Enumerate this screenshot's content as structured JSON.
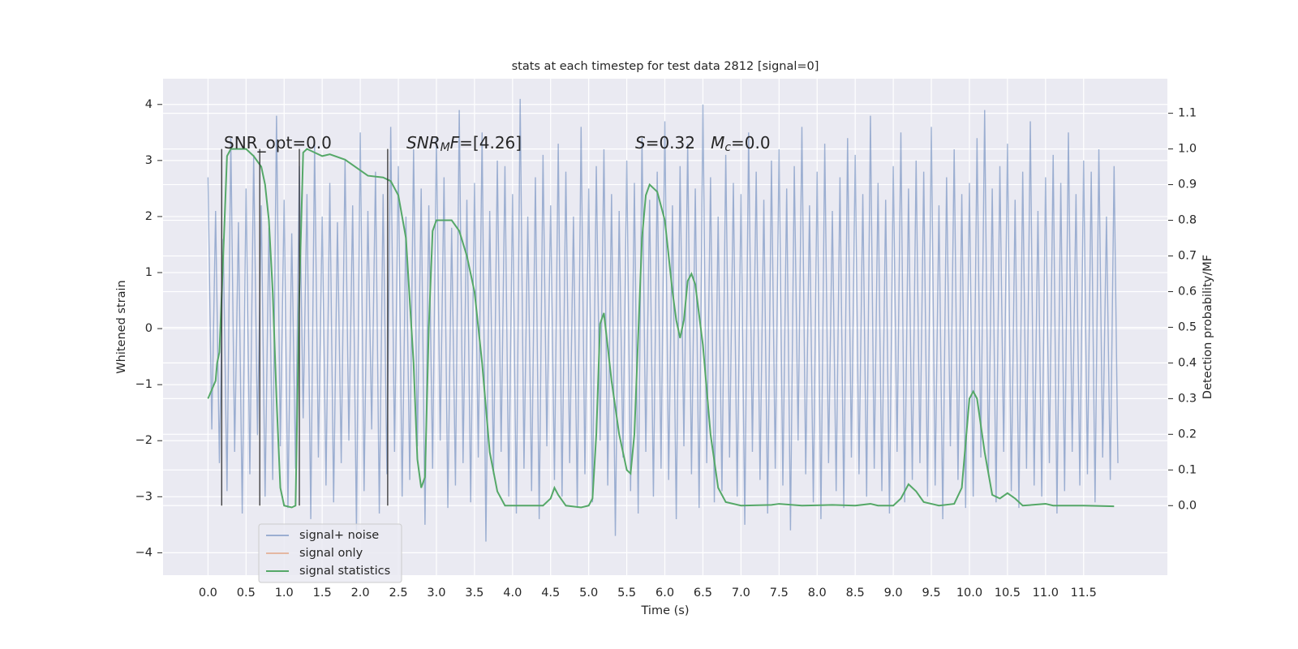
{
  "chart_data": {
    "type": "line",
    "title": "stats at each timestep for test data 2812 [signal=0]",
    "xlabel": "Time (s)",
    "ylabel": "Whitened strain",
    "y2label": "Detection probability/MF",
    "xlim": [
      -0.59,
      12.6
    ],
    "ylim": [
      -4.4,
      4.46
    ],
    "y2lim": [
      -0.195,
      1.197
    ],
    "xticks": [
      {
        "value": 0,
        "label": "0.0"
      },
      0.5,
      {
        "value": 1,
        "label": "1.0"
      },
      1.5,
      {
        "value": 2,
        "label": "2.0"
      },
      2.5,
      {
        "value": 3,
        "label": "3.0"
      },
      3.5,
      {
        "value": 4,
        "label": "4.0"
      },
      4.5,
      {
        "value": 5,
        "label": "5.0"
      },
      5.5,
      {
        "value": 6,
        "label": "6.0"
      },
      6.5,
      {
        "value": 7,
        "label": "7.0"
      },
      7.5,
      {
        "value": 8,
        "label": "8.0"
      },
      8.5,
      {
        "value": 9,
        "label": "9.0"
      },
      9.5,
      {
        "value": 10,
        "label": "10.0"
      },
      10.5,
      {
        "value": 11,
        "label": "11.0"
      },
      11.5
    ],
    "yticks": [
      {
        "value": -4,
        "label": "−4"
      },
      {
        "value": -3,
        "label": "−3"
      },
      {
        "value": -2,
        "label": "−2"
      },
      {
        "value": -1,
        "label": "−1"
      },
      0,
      1,
      2,
      3,
      4
    ],
    "y2ticks": [
      {
        "value": 0,
        "label": "0.0"
      },
      0.1,
      0.2,
      0.3,
      0.4,
      0.5,
      0.6,
      0.7,
      0.8,
      0.9,
      {
        "value": 1,
        "label": "1.0"
      },
      1.1
    ],
    "grid": true,
    "legend": "lower left",
    "series": [
      {
        "name": "signal+ noise",
        "color": "#4c72b0",
        "alpha": 0.5,
        "x": [
          0,
          0.05,
          0.1,
          0.15,
          0.2,
          0.25,
          0.3,
          0.35,
          0.4,
          0.45,
          0.5,
          0.55,
          0.6,
          0.65,
          0.7,
          0.75,
          0.8,
          0.85,
          0.9,
          0.95,
          1,
          1.05,
          1.1,
          1.15,
          1.2,
          1.25,
          1.3,
          1.35,
          1.4,
          1.45,
          1.5,
          1.55,
          1.6,
          1.65,
          1.7,
          1.75,
          1.8,
          1.85,
          1.9,
          1.95,
          2,
          2.05,
          2.1,
          2.15,
          2.2,
          2.25,
          2.3,
          2.35,
          2.4,
          2.45,
          2.5,
          2.55,
          2.6,
          2.65,
          2.7,
          2.75,
          2.8,
          2.85,
          2.9,
          2.95,
          3,
          3.05,
          3.1,
          3.15,
          3.2,
          3.25,
          3.3,
          3.35,
          3.4,
          3.45,
          3.5,
          3.55,
          3.6,
          3.65,
          3.7,
          3.75,
          3.8,
          3.85,
          3.9,
          3.95,
          4,
          4.05,
          4.1,
          4.15,
          4.2,
          4.25,
          4.3,
          4.35,
          4.4,
          4.45,
          4.5,
          4.55,
          4.6,
          4.65,
          4.7,
          4.75,
          4.8,
          4.85,
          4.9,
          4.95,
          5,
          5.05,
          5.1,
          5.15,
          5.2,
          5.25,
          5.3,
          5.35,
          5.4,
          5.45,
          5.5,
          5.55,
          5.6,
          5.65,
          5.7,
          5.75,
          5.8,
          5.85,
          5.9,
          5.95,
          6,
          6.05,
          6.1,
          6.15,
          6.2,
          6.25,
          6.3,
          6.35,
          6.4,
          6.45,
          6.5,
          6.55,
          6.6,
          6.65,
          6.7,
          6.75,
          6.8,
          6.85,
          6.9,
          6.95,
          7,
          7.05,
          7.1,
          7.15,
          7.2,
          7.25,
          7.3,
          7.35,
          7.4,
          7.45,
          7.5,
          7.55,
          7.6,
          7.65,
          7.7,
          7.75,
          7.8,
          7.85,
          7.9,
          7.95,
          8,
          8.05,
          8.1,
          8.15,
          8.2,
          8.25,
          8.3,
          8.35,
          8.4,
          8.45,
          8.5,
          8.55,
          8.6,
          8.65,
          8.7,
          8.75,
          8.8,
          8.85,
          8.9,
          8.95,
          9,
          9.05,
          9.1,
          9.15,
          9.2,
          9.25,
          9.3,
          9.35,
          9.4,
          9.45,
          9.5,
          9.55,
          9.6,
          9.65,
          9.7,
          9.75,
          9.8,
          9.85,
          9.9,
          9.95,
          10,
          10.05,
          10.1,
          10.15,
          10.2,
          10.25,
          10.3,
          10.35,
          10.4,
          10.45,
          10.5,
          10.55,
          10.6,
          10.65,
          10.7,
          10.75,
          10.8,
          10.85,
          10.9,
          10.95,
          11,
          11.05,
          11.1,
          11.15,
          11.2,
          11.25,
          11.3,
          11.35,
          11.4,
          11.45,
          11.5,
          11.55,
          11.6,
          11.65,
          11.7,
          11.75,
          11.8,
          11.85,
          11.9,
          11.95
        ],
        "values": [
          2.7,
          -1.8,
          2.1,
          -2.4,
          1.6,
          -2.9,
          3.4,
          -2.2,
          1.9,
          -3.3,
          2.5,
          -2.6,
          3.1,
          -1.9,
          2.2,
          -3.0,
          1.8,
          -2.7,
          3.8,
          -2.1,
          2.3,
          -3.2,
          1.7,
          -2.5,
          2.9,
          -1.6,
          2.4,
          -3.4,
          3.3,
          -2.3,
          2.0,
          -2.8,
          2.6,
          -3.1,
          1.9,
          -2.4,
          3.0,
          -2.0,
          2.2,
          -3.6,
          3.5,
          -2.9,
          2.1,
          -1.8,
          2.8,
          -3.3,
          2.4,
          -2.6,
          3.6,
          -2.2,
          2.9,
          -3.0,
          2.0,
          -2.7,
          3.2,
          -2.1,
          2.5,
          -3.5,
          2.2,
          -2.5,
          3.4,
          -2.0,
          2.7,
          -3.2,
          1.8,
          -2.8,
          3.9,
          -2.4,
          2.3,
          -3.1,
          2.6,
          -2.3,
          3.5,
          -3.8,
          2.1,
          -2.6,
          3.0,
          -2.2,
          2.9,
          -3.0,
          2.4,
          -3.3,
          4.1,
          -2.5,
          2.0,
          -2.9,
          2.7,
          -3.4,
          3.1,
          -2.1,
          2.2,
          -2.7,
          3.3,
          -3.0,
          2.8,
          -2.4,
          2.0,
          -3.2,
          3.6,
          -2.6,
          2.5,
          -3.1,
          2.9,
          -2.0,
          3.2,
          -2.8,
          2.4,
          -3.7,
          2.1,
          -2.3,
          3.0,
          -2.9,
          2.6,
          -3.3,
          3.4,
          -2.2,
          2.3,
          -3.0,
          2.8,
          -2.5,
          3.7,
          -2.7,
          2.2,
          -3.4,
          2.9,
          -2.1,
          3.3,
          -2.6,
          2.5,
          -3.2,
          4.0,
          -2.4,
          2.7,
          -3.1,
          2.0,
          -2.9,
          3.1,
          -2.3,
          2.6,
          -3.0,
          2.4,
          -3.5,
          3.5,
          -2.2,
          2.8,
          -2.7,
          2.3,
          -3.3,
          3.0,
          -2.5,
          3.2,
          -2.8,
          2.5,
          -3.6,
          2.9,
          -2.0,
          3.6,
          -2.6,
          2.2,
          -3.1,
          2.8,
          -3.4,
          3.3,
          -2.4,
          2.1,
          -2.9,
          2.7,
          -3.2,
          3.4,
          -2.3,
          3.1,
          -2.6,
          2.4,
          -3.0,
          3.8,
          -2.5,
          2.6,
          -2.9,
          2.3,
          -3.3,
          2.9,
          -2.2,
          3.5,
          -3.1,
          2.5,
          -2.7,
          3.0,
          -2.4,
          2.8,
          -3.0,
          3.6,
          -2.8,
          2.2,
          -3.4,
          2.7,
          -2.1,
          3.2,
          -2.7,
          2.4,
          -3.2,
          2.6,
          -3.0,
          3.4,
          -2.3,
          3.9,
          -2.6,
          2.5,
          -3.1,
          2.9,
          -2.2,
          3.3,
          -2.9,
          2.3,
          -3.2,
          2.8,
          -2.5,
          3.7,
          -2.8,
          2.1,
          -3.0,
          2.7,
          -2.4,
          3.1,
          -3.3,
          2.6,
          -2.9,
          3.5,
          -2.2,
          2.4,
          -2.8,
          3.0,
          -2.6,
          2.8,
          -3.1,
          3.2,
          -2.3,
          2.0,
          -2.7,
          2.9,
          -2.4
        ]
      },
      {
        "name": "signal only",
        "color": "#dd8452",
        "alpha": 0.5,
        "x": [],
        "values": []
      },
      {
        "name": "signal statistics",
        "color": "#55a868",
        "alpha": 1,
        "axis": "y2",
        "x": [
          0,
          0.1,
          0.12,
          0.15,
          0.2,
          0.25,
          0.3,
          0.5,
          0.6,
          0.7,
          0.75,
          0.8,
          0.85,
          0.9,
          0.95,
          1,
          1.1,
          1.15,
          1.2,
          1.25,
          1.3,
          1.4,
          1.5,
          1.6,
          1.8,
          2,
          2.1,
          2.3,
          2.4,
          2.5,
          2.6,
          2.7,
          2.75,
          2.8,
          2.85,
          2.9,
          2.95,
          3,
          3.2,
          3.3,
          3.4,
          3.5,
          3.6,
          3.7,
          3.8,
          3.9,
          4,
          4.4,
          4.5,
          4.55,
          4.6,
          4.7,
          4.9,
          5,
          5.05,
          5.1,
          5.15,
          5.2,
          5.3,
          5.4,
          5.5,
          5.55,
          5.6,
          5.7,
          5.75,
          5.8,
          5.9,
          6,
          6.1,
          6.15,
          6.2,
          6.25,
          6.3,
          6.35,
          6.4,
          6.5,
          6.6,
          6.7,
          6.8,
          7,
          7.4,
          7.5,
          7.8,
          8.2,
          8.5,
          8.7,
          8.8,
          9,
          9.1,
          9.2,
          9.3,
          9.4,
          9.6,
          9.8,
          9.9,
          10,
          10.05,
          10.1,
          10.2,
          10.3,
          10.4,
          10.5,
          10.6,
          10.7,
          11,
          11.1,
          11.5,
          11.9
        ],
        "values": [
          0.3,
          0.35,
          0.4,
          0.43,
          0.7,
          0.98,
          1.0,
          1.0,
          0.98,
          0.95,
          0.9,
          0.8,
          0.6,
          0.3,
          0.05,
          0.0,
          -0.005,
          0.0,
          0.6,
          0.99,
          1.0,
          0.99,
          0.98,
          0.985,
          0.97,
          0.94,
          0.925,
          0.92,
          0.91,
          0.87,
          0.75,
          0.4,
          0.13,
          0.05,
          0.08,
          0.5,
          0.77,
          0.8,
          0.8,
          0.77,
          0.7,
          0.6,
          0.4,
          0.15,
          0.04,
          0.0,
          0.0,
          0.0,
          0.02,
          0.05,
          0.03,
          0.0,
          -0.005,
          0.0,
          0.02,
          0.2,
          0.51,
          0.54,
          0.35,
          0.2,
          0.1,
          0.09,
          0.2,
          0.75,
          0.87,
          0.9,
          0.88,
          0.8,
          0.6,
          0.52,
          0.47,
          0.52,
          0.63,
          0.65,
          0.62,
          0.45,
          0.2,
          0.05,
          0.01,
          0.0,
          0.002,
          0.005,
          0.0,
          0.002,
          0.0,
          0.005,
          0.0,
          0.0,
          0.02,
          0.06,
          0.04,
          0.01,
          0.0,
          0.005,
          0.05,
          0.3,
          0.32,
          0.3,
          0.15,
          0.03,
          0.02,
          0.035,
          0.02,
          0.0,
          0.005,
          0.0,
          0.0,
          -0.002
        ]
      }
    ],
    "vlines": {
      "x": [
        0.18,
        0.68,
        1.2,
        2.36
      ],
      "ymin": 0,
      "ymax": 1,
      "axis": "y2",
      "color": "#333333"
    },
    "annotations": [
      [
        {
          "text": "SNR_opt=0.0"
        }
      ],
      [
        {
          "text": "SNR",
          "italic": true
        },
        {
          "text": "M",
          "italic": true,
          "sub": true
        },
        {
          "text": "F",
          "italic": true
        },
        {
          "text": "=[4.26]"
        }
      ],
      [
        {
          "text": "S",
          "italic": true
        },
        {
          "text": "=0.32   "
        },
        {
          "text": "M",
          "italic": true
        },
        {
          "text": "c",
          "italic": true,
          "sub": true
        },
        {
          "text": "=0.0"
        }
      ]
    ]
  }
}
